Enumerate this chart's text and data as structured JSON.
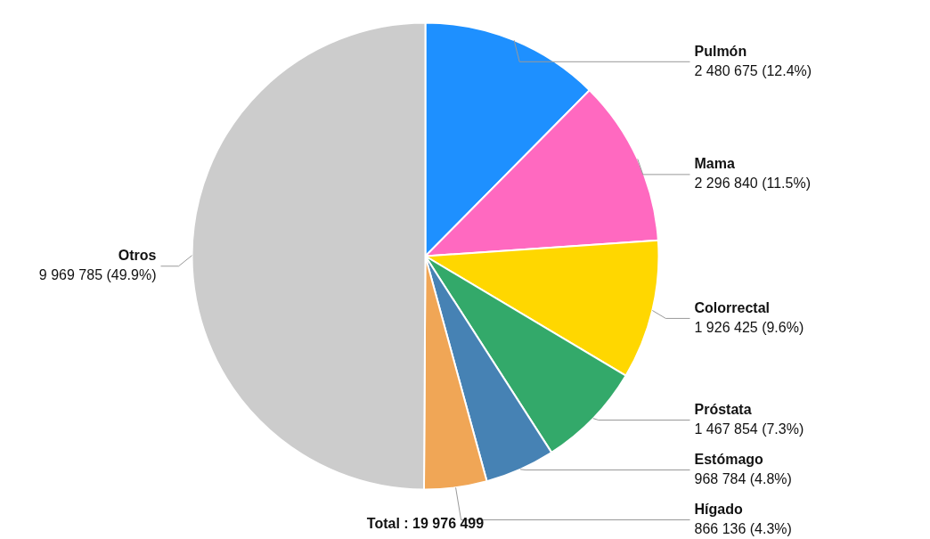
{
  "chart_data": {
    "type": "pie",
    "categories": [
      "Pulmón",
      "Mama",
      "Colorrectal",
      "Próstata",
      "Estómago",
      "Hígado",
      "Otros"
    ],
    "values": [
      2480675,
      2296840,
      1926425,
      1467854,
      968784,
      866136,
      9969785
    ],
    "colors": [
      "#1e90ff",
      "#ff69c0",
      "#ffd700",
      "#33a96a",
      "#4682b4",
      "#f0a656",
      "#cccccc"
    ],
    "value_labels": [
      "2 480 675 (12.4%)",
      "2 296 840 (11.5%)",
      "1 926 425 (9.6%)",
      "1 467 854 (7.3%)",
      "968 784 (4.8%)",
      "866 136 (4.3%)",
      "9 969 785 (49.9%)"
    ],
    "annotations": [
      "Total : 19 976 499"
    ]
  }
}
